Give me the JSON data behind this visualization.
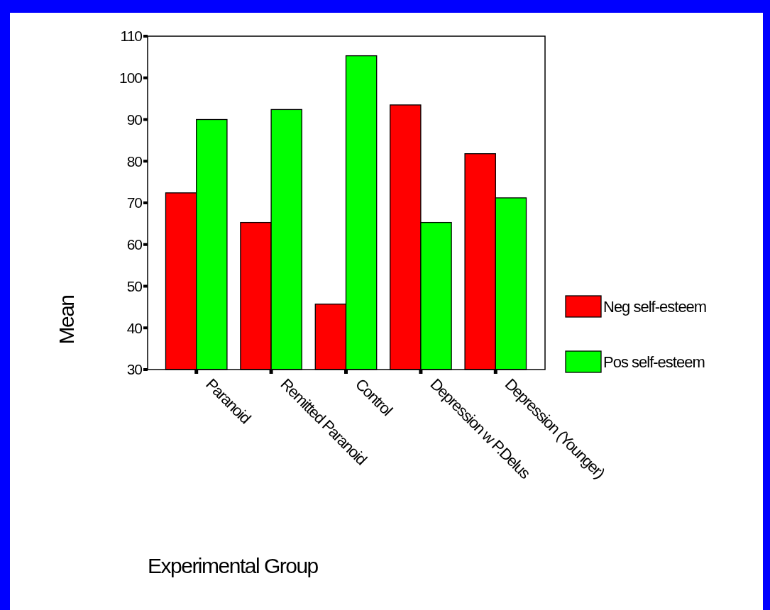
{
  "chart_data": {
    "type": "bar",
    "xlabel": "Experimental Group",
    "ylabel": "Mean",
    "categories": [
      "Paranoid",
      "Remitted Paranoid",
      "Control",
      "Depression w P.Delus",
      "Depression (Younger)"
    ],
    "series": [
      {
        "name": "Neg self-esteem",
        "color": "#ff0000",
        "values": [
          72.4,
          65.3,
          45.7,
          93.5,
          81.8
        ]
      },
      {
        "name": "Pos self-esteem",
        "color": "#00ff00",
        "values": [
          90.0,
          92.4,
          105.3,
          65.3,
          71.2
        ]
      }
    ],
    "ylim": [
      30,
      110
    ],
    "yticks": [
      30,
      40,
      50,
      60,
      70,
      80,
      90,
      100,
      110
    ],
    "grid": false,
    "legend": "right"
  }
}
